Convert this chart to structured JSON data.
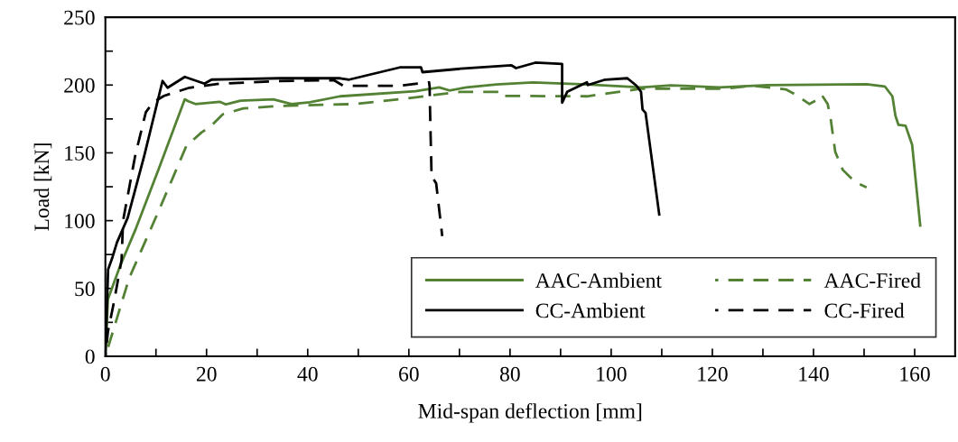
{
  "chart_data": {
    "type": "line",
    "xlabel": "Mid-span deflection [mm]",
    "ylabel": "Load [kN]",
    "xlim": [
      0,
      168
    ],
    "ylim": [
      0,
      250
    ],
    "xticks": [
      0,
      {
        "value": 10,
        "label": null
      },
      20,
      {
        "value": 30,
        "label": null
      },
      40,
      {
        "value": 50,
        "label": null
      },
      60,
      {
        "value": 70,
        "label": null
      },
      80,
      {
        "value": 90,
        "label": null
      },
      100,
      {
        "value": 110,
        "label": null
      },
      120,
      {
        "value": 130,
        "label": null
      },
      140,
      {
        "value": 150,
        "label": null
      },
      160
    ],
    "yticks": [
      0,
      {
        "value": 25,
        "label": null
      },
      50,
      {
        "value": 75,
        "label": null
      },
      100,
      {
        "value": 125,
        "label": null
      },
      150,
      {
        "value": 175,
        "label": null
      },
      200,
      {
        "value": 225,
        "label": null
      },
      250
    ],
    "grid": false,
    "legend": "bottom right",
    "marker": "none",
    "series": [
      {
        "name": "AAC-Ambient",
        "color": "#548235",
        "line_style": "solid",
        "x": [
          0,
          0.5,
          2.9,
          5.9,
          10.7,
          15.7,
          16.4,
          17.8,
          22.6,
          23.8,
          26.7,
          33.2,
          36.8,
          40.4,
          46.4,
          61.3,
          66,
          68,
          71.4,
          77.3,
          84.5,
          95.2,
          105.9,
          111.8,
          121.4,
          130.9,
          150.5,
          154.1,
          155.6,
          156.2,
          156.8,
          158.2,
          159.5,
          161.1
        ],
        "values": [
          0,
          42,
          66.5,
          93,
          139.6,
          189.5,
          188,
          186,
          187.7,
          185.7,
          188.4,
          189.5,
          186,
          187.3,
          191.7,
          195.5,
          198.3,
          196,
          198.3,
          200.5,
          202,
          200.5,
          198.3,
          199.8,
          198.3,
          200,
          200.6,
          199,
          191.7,
          177.3,
          170.6,
          170,
          156,
          96.4
        ]
      },
      {
        "name": "AAC-Fired",
        "color": "#548235",
        "line_style": "dashed",
        "x": [
          0,
          4.7,
          10.7,
          16,
          19,
          20.8,
          23.2,
          27.3,
          34.5,
          49.3,
          58.2,
          70.2,
          78.5,
          78.7,
          95.2,
          105.9,
          122,
          127.9,
          134.5,
          136.3,
          139.2,
          140.4,
          141.6,
          142.8,
          143.4,
          144.3,
          145.8,
          148.2,
          150.5
        ],
        "values": [
          0,
          57.6,
          108.6,
          155,
          165,
          169.5,
          178.4,
          182.8,
          184.6,
          186,
          189.5,
          195,
          195,
          192,
          191.7,
          197.2,
          197.2,
          199.5,
          196.8,
          193.3,
          186,
          188.4,
          192.8,
          186,
          175,
          150.7,
          137.4,
          128.5,
          124.5
        ]
      },
      {
        "name": "CC-Ambient",
        "color": "#000000",
        "line_style": "solid",
        "x": [
          0,
          0.54,
          1.4,
          2.3,
          4.4,
          7.7,
          11.3,
          12.3,
          15.7,
          19.6,
          21,
          34.5,
          46.4,
          48.2,
          58.2,
          62.4,
          62.7,
          70.2,
          80.3,
          81.2,
          85,
          90.3,
          90.3,
          91.3,
          95.2,
          95.4,
          98.8,
          103.2,
          105,
          105.9,
          106.2,
          106.8,
          109.5
        ],
        "values": [
          0,
          64,
          73,
          84,
          102,
          148,
          203,
          198,
          206,
          201,
          204,
          205,
          205,
          204,
          213,
          213,
          209.5,
          212,
          214.5,
          212.5,
          216.5,
          215.5,
          187,
          195,
          202,
          200,
          204,
          205,
          199.5,
          195,
          182,
          179.5,
          104.6
        ]
      },
      {
        "name": "CC-Fired",
        "color": "#000000",
        "line_style": "dashed",
        "x": [
          0,
          0.5,
          1.7,
          3.2,
          3.5,
          5.9,
          8,
          9.5,
          11.6,
          16.6,
          22.5,
          34.5,
          45.2,
          47,
          58.2,
          64,
          64.1,
          64.2,
          64.5,
          64.8,
          65.4,
          66.6
        ],
        "values": [
          0,
          18,
          40,
          71,
          100,
          148,
          180,
          187.5,
          192,
          198,
          201,
          203,
          203.5,
          199.5,
          199.5,
          202,
          199,
          179.5,
          131,
          131,
          127.5,
          88.6
        ]
      }
    ]
  }
}
